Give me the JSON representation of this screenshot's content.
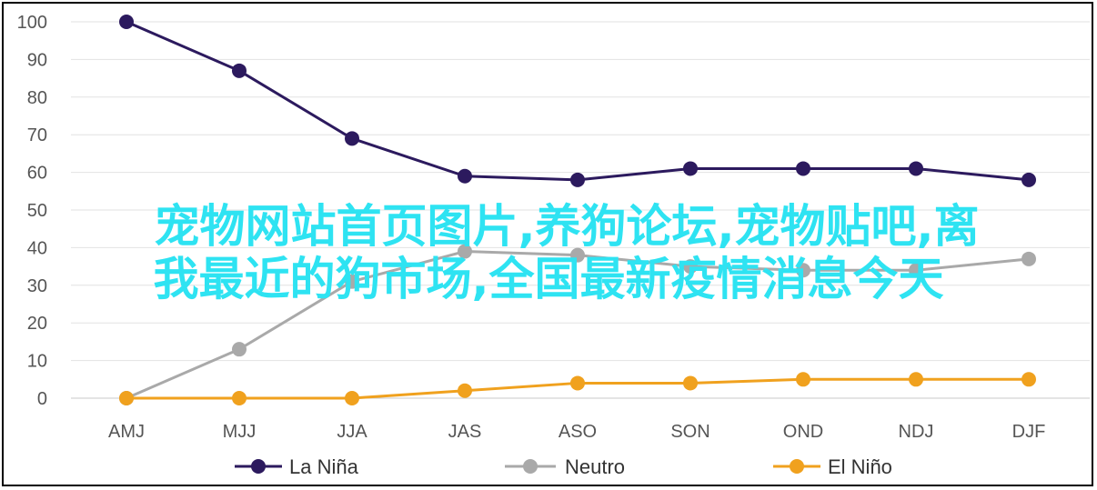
{
  "chart_data": {
    "type": "line",
    "categories": [
      "AMJ",
      "MJJ",
      "JJA",
      "JAS",
      "ASO",
      "SON",
      "OND",
      "NDJ",
      "DJF"
    ],
    "series": [
      {
        "name": "La Niña",
        "color": "#2c1a5e",
        "values": [
          100,
          87,
          69,
          59,
          58,
          61,
          61,
          61,
          58
        ]
      },
      {
        "name": "Neutro",
        "color": "#a9a9a9",
        "values": [
          0,
          13,
          31,
          39,
          38,
          35,
          34,
          34,
          37
        ]
      },
      {
        "name": "El Niño",
        "color": "#f0a11e",
        "values": [
          0,
          0,
          0,
          2,
          4,
          4,
          5,
          5,
          5
        ]
      }
    ],
    "yticks": [
      0,
      10,
      20,
      30,
      40,
      50,
      60,
      70,
      80,
      90,
      100
    ],
    "ylim": [
      0,
      100
    ],
    "grid": true,
    "legend_position": "bottom"
  },
  "overlay": {
    "line1": "宠物网站首页图片,养狗论坛,宠物贴吧,离",
    "line2": "我最近的狗市场,全国最新疫情消息今天",
    "color": "#2ee3f2"
  }
}
